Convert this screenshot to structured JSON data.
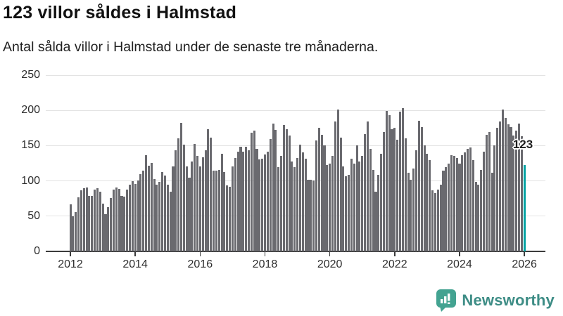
{
  "header": {
    "title": "123 villor såldes i Halmstad",
    "subtitle": "Antal sålda villor i Halmstad under de senaste tre månaderna."
  },
  "chart_data": {
    "type": "bar",
    "title": "123 villor såldes i Halmstad",
    "subtitle": "Antal sålda villor i Halmstad under de senaste tre månaderna.",
    "x_start_year": 2012,
    "months_per_bar": 1,
    "values": [
      67,
      50,
      56,
      77,
      87,
      90,
      91,
      79,
      79,
      88,
      90,
      85,
      68,
      53,
      63,
      76,
      88,
      91,
      89,
      79,
      78,
      88,
      95,
      100,
      96,
      101,
      110,
      115,
      136,
      122,
      126,
      103,
      95,
      99,
      113,
      108,
      95,
      85,
      121,
      143,
      160,
      182,
      151,
      121,
      105,
      128,
      152,
      135,
      121,
      133,
      143,
      173,
      161,
      115,
      115,
      116,
      138,
      113,
      94,
      92,
      121,
      132,
      141,
      148,
      141,
      148,
      143,
      168,
      171,
      145,
      130,
      131,
      137,
      141,
      159,
      181,
      172,
      120,
      135,
      179,
      173,
      164,
      128,
      120,
      132,
      151,
      140,
      131,
      102,
      102,
      101,
      157,
      175,
      165,
      150,
      123,
      125,
      135,
      184,
      201,
      161,
      121,
      107,
      109,
      131,
      125,
      150,
      128,
      135,
      166,
      184,
      145,
      116,
      85,
      109,
      138,
      169,
      199,
      193,
      173,
      175,
      158,
      198,
      203,
      160,
      112,
      102,
      118,
      143,
      185,
      176,
      150,
      138,
      129,
      87,
      83,
      88,
      95,
      115,
      120,
      125,
      136,
      135,
      132,
      125,
      136,
      140,
      145,
      147,
      129,
      99,
      95,
      116,
      141,
      165,
      169,
      112,
      150,
      175,
      184,
      201,
      189,
      180,
      176,
      164,
      171,
      181,
      163,
      123
    ],
    "highlight_index": 168,
    "highlight_value": 123,
    "highlight_label": "123",
    "yticks": [
      0,
      50,
      100,
      150,
      200,
      250
    ],
    "ylim": [
      0,
      250
    ],
    "xticks": [
      "2012",
      "2014",
      "2016",
      "2018",
      "2020",
      "2022",
      "2024",
      "2026"
    ],
    "grid": "horizontal",
    "legend": "none",
    "colors": {
      "bar": "#6a6a6f",
      "highlight": "#00a3a3",
      "grid": "#e3e3e3",
      "axis": "#3b3b3b",
      "brand": "#3e8d86",
      "brand_icon": "#43a391"
    }
  },
  "footer": {
    "brand": "Newsworthy"
  }
}
